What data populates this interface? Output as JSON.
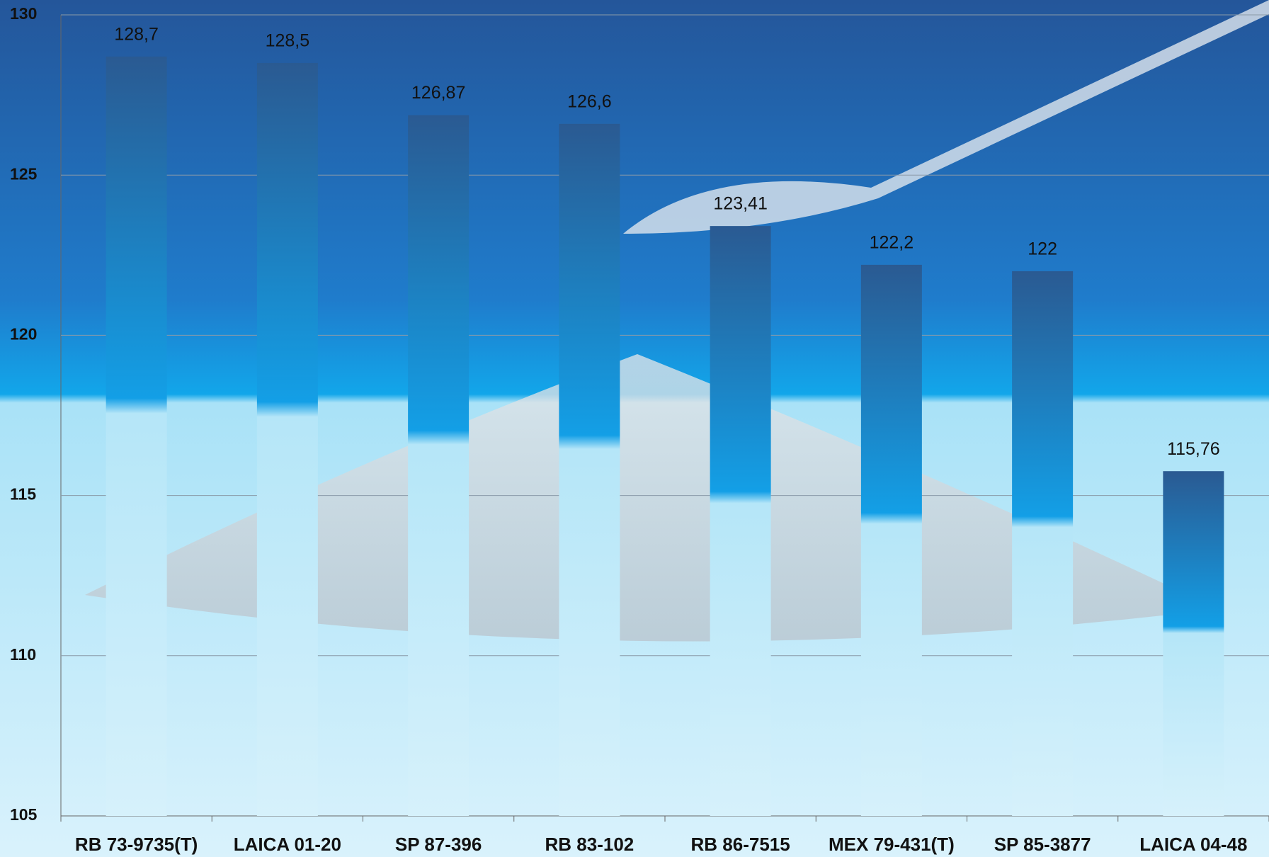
{
  "chart_data": {
    "type": "bar",
    "categories": [
      "RB 73-9735(T)",
      "LAICA 01-20",
      "SP 87-396",
      "RB 83-102",
      "RB 86-7515",
      "MEX 79-431(T)",
      "SP 85-3877",
      "LAICA 04-48"
    ],
    "values": [
      128.7,
      128.5,
      126.87,
      126.6,
      123.41,
      122.2,
      122,
      115.76
    ],
    "value_labels": [
      "128,7",
      "128,5",
      "126,87",
      "126,6",
      "123,41",
      "122,2",
      "122",
      "115,76"
    ],
    "ylim": [
      105,
      130
    ],
    "yticks": [
      105,
      110,
      115,
      120,
      125,
      130
    ],
    "grid": true
  }
}
